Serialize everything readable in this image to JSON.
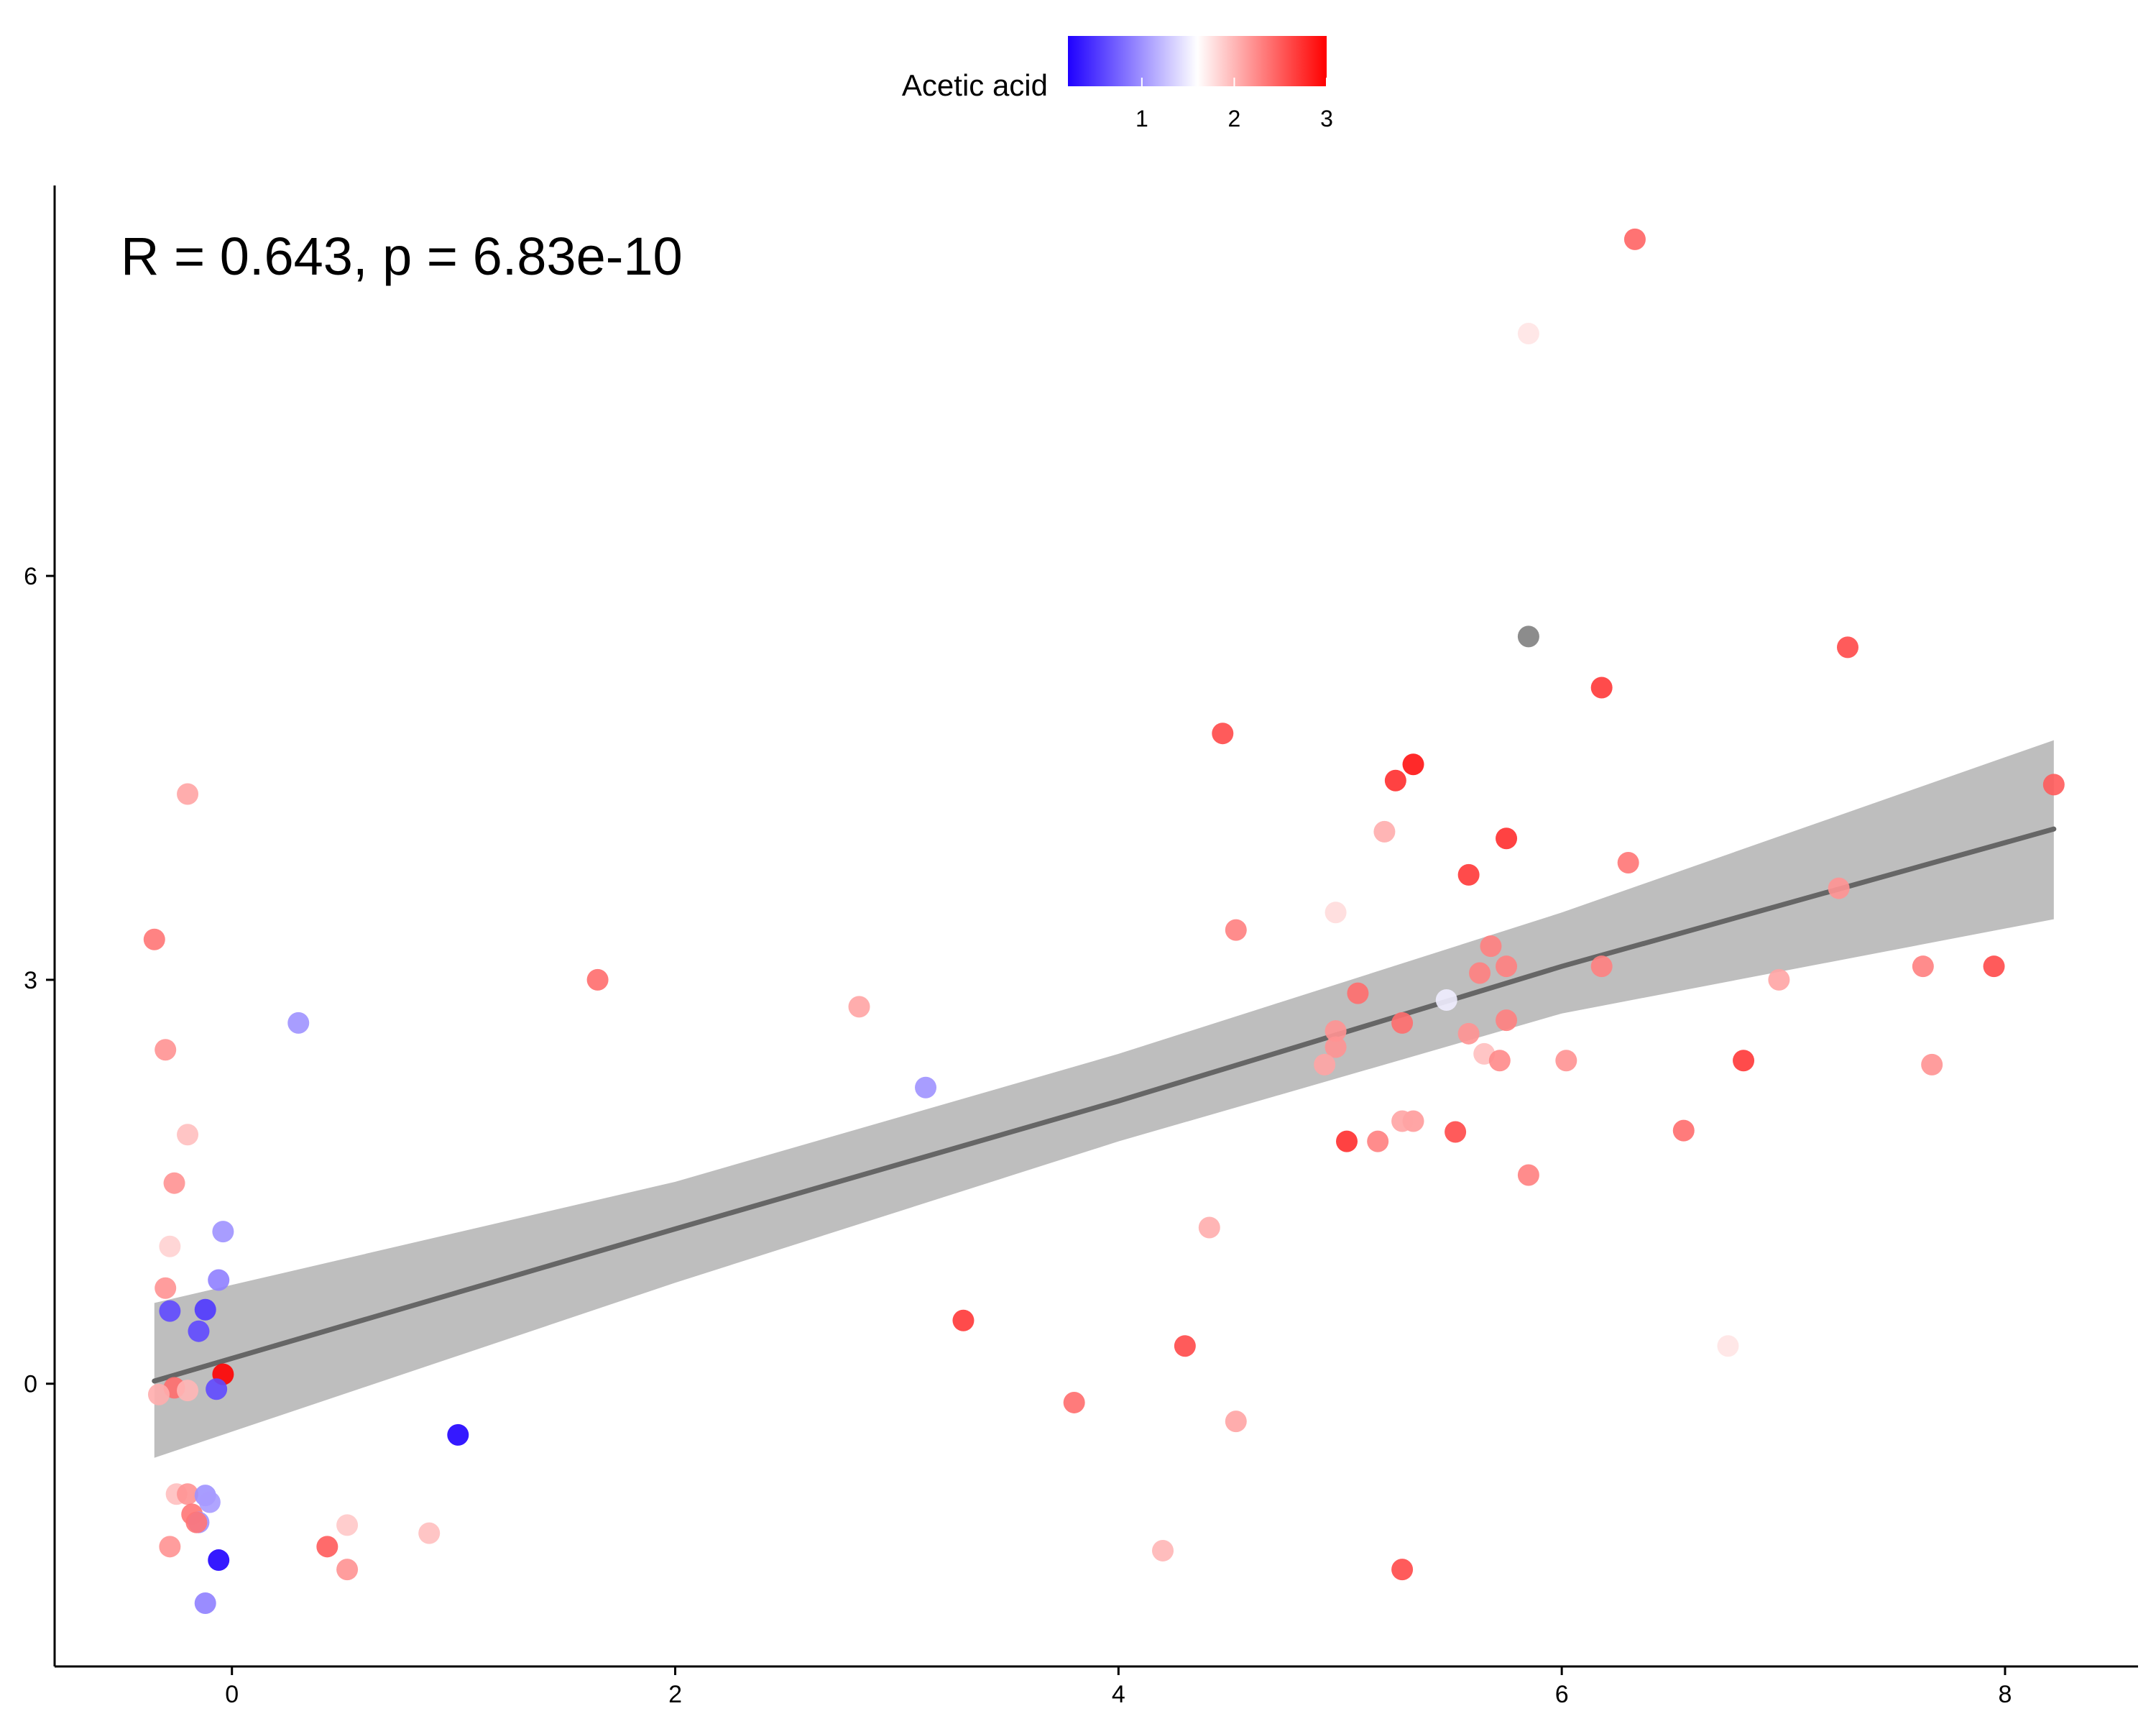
{
  "chart_data": {
    "type": "scatter",
    "annotation": "R = 0.643, p = 6.83e-10",
    "xlabel": "",
    "ylabel": "",
    "xlim": [
      -0.8,
      8.6
    ],
    "ylim": [
      -2.1,
      8.9
    ],
    "x_ticks": [
      0,
      2,
      4,
      6,
      8
    ],
    "y_ticks": [
      0,
      3,
      6
    ],
    "grid": false,
    "legend": {
      "title": "Acetic acid",
      "placement": "top",
      "type": "gradient",
      "range": [
        0.2,
        3.0
      ],
      "ticks": [
        1,
        2,
        3
      ],
      "colors": [
        "#1f00ff",
        "#ffffff",
        "#ff0000"
      ]
    },
    "colors": {
      "na_point": "#808080",
      "trend_line": "#666666",
      "confidence_band": "#bebebe",
      "axis": "#000000"
    },
    "trend": {
      "points": [
        [
          -0.35,
          0.02
        ],
        [
          2,
          1.15
        ],
        [
          4,
          2.1
        ],
        [
          6,
          3.1
        ],
        [
          8.22,
          4.12
        ]
      ],
      "band_upper": [
        [
          -0.35,
          0.6
        ],
        [
          2,
          1.5
        ],
        [
          4,
          2.45
        ],
        [
          6,
          3.5
        ],
        [
          8.22,
          4.78
        ]
      ],
      "band_lower": [
        [
          -0.35,
          -0.55
        ],
        [
          2,
          0.75
        ],
        [
          4,
          1.8
        ],
        [
          6,
          2.75
        ],
        [
          8.22,
          3.45
        ]
      ]
    },
    "points": [
      {
        "x": 6.33,
        "y": 8.5,
        "acetic": 2.45
      },
      {
        "x": 5.85,
        "y": 7.8,
        "acetic": 1.75
      },
      {
        "x": 5.85,
        "y": 5.55,
        "acetic": null
      },
      {
        "x": 7.29,
        "y": 5.47,
        "acetic": 2.6
      },
      {
        "x": 6.18,
        "y": 5.17,
        "acetic": 2.7
      },
      {
        "x": 4.47,
        "y": 4.83,
        "acetic": 2.6
      },
      {
        "x": 5.33,
        "y": 4.6,
        "acetic": 2.9
      },
      {
        "x": 5.25,
        "y": 4.48,
        "acetic": 2.75
      },
      {
        "x": 8.22,
        "y": 4.45,
        "acetic": 2.5
      },
      {
        "x": -0.2,
        "y": 4.38,
        "acetic": 2.1
      },
      {
        "x": 5.2,
        "y": 4.1,
        "acetic": 2.05
      },
      {
        "x": 5.75,
        "y": 4.05,
        "acetic": 2.75
      },
      {
        "x": 6.3,
        "y": 3.87,
        "acetic": 2.35
      },
      {
        "x": 5.58,
        "y": 3.78,
        "acetic": 2.7
      },
      {
        "x": 7.25,
        "y": 3.68,
        "acetic": 2.2
      },
      {
        "x": 4.98,
        "y": 3.5,
        "acetic": 1.8
      },
      {
        "x": 4.53,
        "y": 3.37,
        "acetic": 2.3
      },
      {
        "x": -0.35,
        "y": 3.3,
        "acetic": 2.35
      },
      {
        "x": 5.68,
        "y": 3.25,
        "acetic": 2.3
      },
      {
        "x": 7.63,
        "y": 3.1,
        "acetic": 2.3
      },
      {
        "x": 7.95,
        "y": 3.1,
        "acetic": 2.6
      },
      {
        "x": 6.18,
        "y": 3.1,
        "acetic": 2.3
      },
      {
        "x": 5.75,
        "y": 3.1,
        "acetic": 2.3
      },
      {
        "x": 1.65,
        "y": 3.0,
        "acetic": 2.4
      },
      {
        "x": 6.98,
        "y": 3.0,
        "acetic": 2.1
      },
      {
        "x": 5.63,
        "y": 3.05,
        "acetic": 2.3
      },
      {
        "x": 5.08,
        "y": 2.9,
        "acetic": 2.4
      },
      {
        "x": 5.48,
        "y": 2.85,
        "acetic": 1.5
      },
      {
        "x": 2.83,
        "y": 2.8,
        "acetic": 2.1
      },
      {
        "x": 0.3,
        "y": 2.68,
        "acetic": 1.0
      },
      {
        "x": 5.75,
        "y": 2.7,
        "acetic": 2.3
      },
      {
        "x": 5.28,
        "y": 2.68,
        "acetic": 2.4
      },
      {
        "x": 4.98,
        "y": 2.62,
        "acetic": 2.2
      },
      {
        "x": 5.58,
        "y": 2.6,
        "acetic": 2.2
      },
      {
        "x": 4.98,
        "y": 2.5,
        "acetic": 2.2
      },
      {
        "x": -0.3,
        "y": 2.48,
        "acetic": 2.2
      },
      {
        "x": 5.65,
        "y": 2.45,
        "acetic": 1.95
      },
      {
        "x": 5.72,
        "y": 2.4,
        "acetic": 2.25
      },
      {
        "x": 6.02,
        "y": 2.4,
        "acetic": 2.2
      },
      {
        "x": 6.82,
        "y": 2.4,
        "acetic": 2.7
      },
      {
        "x": 4.93,
        "y": 2.37,
        "acetic": 2.1
      },
      {
        "x": 7.67,
        "y": 2.37,
        "acetic": 2.2
      },
      {
        "x": 3.13,
        "y": 2.2,
        "acetic": 1.0
      },
      {
        "x": 5.33,
        "y": 1.95,
        "acetic": 2.15
      },
      {
        "x": 5.28,
        "y": 1.95,
        "acetic": 2.1
      },
      {
        "x": 6.55,
        "y": 1.88,
        "acetic": 2.4
      },
      {
        "x": 5.52,
        "y": 1.87,
        "acetic": 2.6
      },
      {
        "x": -0.2,
        "y": 1.85,
        "acetic": 1.95
      },
      {
        "x": 5.03,
        "y": 1.8,
        "acetic": 2.75
      },
      {
        "x": 5.17,
        "y": 1.8,
        "acetic": 2.3
      },
      {
        "x": 5.85,
        "y": 1.55,
        "acetic": 2.3
      },
      {
        "x": -0.26,
        "y": 1.49,
        "acetic": 2.2
      },
      {
        "x": 4.41,
        "y": 1.16,
        "acetic": 2.05
      },
      {
        "x": -0.04,
        "y": 1.13,
        "acetic": 1.0
      },
      {
        "x": -0.28,
        "y": 1.02,
        "acetic": 1.85
      },
      {
        "x": -0.06,
        "y": 0.77,
        "acetic": 0.9
      },
      {
        "x": -0.3,
        "y": 0.71,
        "acetic": 2.2
      },
      {
        "x": -0.28,
        "y": 0.54,
        "acetic": 0.6
      },
      {
        "x": -0.12,
        "y": 0.55,
        "acetic": 0.5
      },
      {
        "x": 3.3,
        "y": 0.47,
        "acetic": 2.7
      },
      {
        "x": -0.15,
        "y": 0.39,
        "acetic": 0.6
      },
      {
        "x": 4.3,
        "y": 0.28,
        "acetic": 2.6
      },
      {
        "x": 6.75,
        "y": 0.28,
        "acetic": 1.75
      },
      {
        "x": -0.04,
        "y": 0.07,
        "acetic": 3.0
      },
      {
        "x": -0.26,
        "y": -0.03,
        "acetic": 2.4
      },
      {
        "x": -0.07,
        "y": -0.04,
        "acetic": 0.6
      },
      {
        "x": -0.33,
        "y": -0.08,
        "acetic": 2.05
      },
      {
        "x": -0.2,
        "y": -0.05,
        "acetic": 2.0
      },
      {
        "x": 3.8,
        "y": -0.14,
        "acetic": 2.4
      },
      {
        "x": 4.53,
        "y": -0.28,
        "acetic": 2.1
      },
      {
        "x": 1.02,
        "y": -0.38,
        "acetic": 0.2
      },
      {
        "x": -0.25,
        "y": -0.82,
        "acetic": 1.95
      },
      {
        "x": -0.2,
        "y": -0.82,
        "acetic": 2.2
      },
      {
        "x": -0.12,
        "y": -0.83,
        "acetic": 1.0
      },
      {
        "x": -0.1,
        "y": -0.88,
        "acetic": 1.05
      },
      {
        "x": -0.18,
        "y": -0.97,
        "acetic": 2.35
      },
      {
        "x": -0.15,
        "y": -1.03,
        "acetic": 1.0
      },
      {
        "x": -0.16,
        "y": -1.03,
        "acetic": 2.35
      },
      {
        "x": 0.52,
        "y": -1.05,
        "acetic": 1.9
      },
      {
        "x": 0.89,
        "y": -1.11,
        "acetic": 1.95
      },
      {
        "x": -0.28,
        "y": -1.21,
        "acetic": 2.2
      },
      {
        "x": 0.43,
        "y": -1.21,
        "acetic": 2.5
      },
      {
        "x": 4.2,
        "y": -1.24,
        "acetic": 2.0
      },
      {
        "x": -0.06,
        "y": -1.31,
        "acetic": 0.2
      },
      {
        "x": 0.52,
        "y": -1.38,
        "acetic": 2.2
      },
      {
        "x": 5.28,
        "y": -1.38,
        "acetic": 2.6
      },
      {
        "x": -0.12,
        "y": -1.63,
        "acetic": 0.9
      }
    ]
  }
}
